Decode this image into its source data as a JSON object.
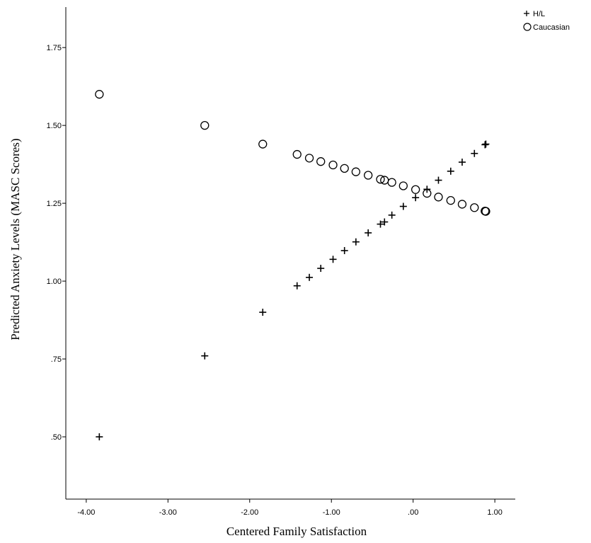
{
  "chart_data": {
    "type": "scatter",
    "xlabel": "Centered Family Satisfaction",
    "ylabel": "Predicted Anxiety Levels (MASC Scores)",
    "xlim": [
      -4.25,
      1.25
    ],
    "ylim": [
      0.3,
      1.88
    ],
    "x_ticks": [
      {
        "value": -4,
        "label": "-4.00"
      },
      {
        "value": -3,
        "label": "-3.00"
      },
      {
        "value": -2,
        "label": "-2.00"
      },
      {
        "value": -1,
        "label": "-1.00"
      },
      {
        "value": 0,
        "label": ".00"
      },
      {
        "value": 1,
        "label": "1.00"
      }
    ],
    "y_ticks": [
      {
        "value": 0.5,
        "label": ".50"
      },
      {
        "value": 0.75,
        "label": ".75"
      },
      {
        "value": 1.0,
        "label": "1.00"
      },
      {
        "value": 1.25,
        "label": "1.25"
      },
      {
        "value": 1.5,
        "label": "1.50"
      },
      {
        "value": 1.75,
        "label": "1.75"
      }
    ],
    "legend_position": "top-right",
    "series": [
      {
        "name": "H/L",
        "marker": "plus",
        "points": [
          {
            "x": -3.84,
            "y": 0.5
          },
          {
            "x": -2.55,
            "y": 0.76
          },
          {
            "x": -1.84,
            "y": 0.9
          },
          {
            "x": -1.42,
            "y": 0.985
          },
          {
            "x": -1.27,
            "y": 1.012
          },
          {
            "x": -1.13,
            "y": 1.041
          },
          {
            "x": -0.98,
            "y": 1.07
          },
          {
            "x": -0.84,
            "y": 1.098
          },
          {
            "x": -0.7,
            "y": 1.126
          },
          {
            "x": -0.55,
            "y": 1.155
          },
          {
            "x": -0.4,
            "y": 1.183
          },
          {
            "x": -0.35,
            "y": 1.19
          },
          {
            "x": -0.26,
            "y": 1.212
          },
          {
            "x": -0.12,
            "y": 1.24
          },
          {
            "x": 0.03,
            "y": 1.268
          },
          {
            "x": 0.17,
            "y": 1.295
          },
          {
            "x": 0.31,
            "y": 1.324
          },
          {
            "x": 0.46,
            "y": 1.353
          },
          {
            "x": 0.6,
            "y": 1.382
          },
          {
            "x": 0.75,
            "y": 1.41
          },
          {
            "x": 0.88,
            "y": 1.438
          },
          {
            "x": 0.89,
            "y": 1.44
          }
        ]
      },
      {
        "name": "Caucasian",
        "marker": "circle",
        "points": [
          {
            "x": -3.84,
            "y": 1.6
          },
          {
            "x": -2.55,
            "y": 1.5
          },
          {
            "x": -1.84,
            "y": 1.44
          },
          {
            "x": -1.42,
            "y": 1.407
          },
          {
            "x": -1.27,
            "y": 1.395
          },
          {
            "x": -1.13,
            "y": 1.384
          },
          {
            "x": -0.98,
            "y": 1.373
          },
          {
            "x": -0.84,
            "y": 1.362
          },
          {
            "x": -0.7,
            "y": 1.351
          },
          {
            "x": -0.55,
            "y": 1.34
          },
          {
            "x": -0.4,
            "y": 1.327
          },
          {
            "x": -0.35,
            "y": 1.324
          },
          {
            "x": -0.26,
            "y": 1.317
          },
          {
            "x": -0.12,
            "y": 1.306
          },
          {
            "x": 0.03,
            "y": 1.294
          },
          {
            "x": 0.17,
            "y": 1.282
          },
          {
            "x": 0.31,
            "y": 1.27
          },
          {
            "x": 0.46,
            "y": 1.259
          },
          {
            "x": 0.6,
            "y": 1.247
          },
          {
            "x": 0.75,
            "y": 1.236
          },
          {
            "x": 0.88,
            "y": 1.225
          },
          {
            "x": 0.89,
            "y": 1.224
          }
        ]
      }
    ]
  }
}
